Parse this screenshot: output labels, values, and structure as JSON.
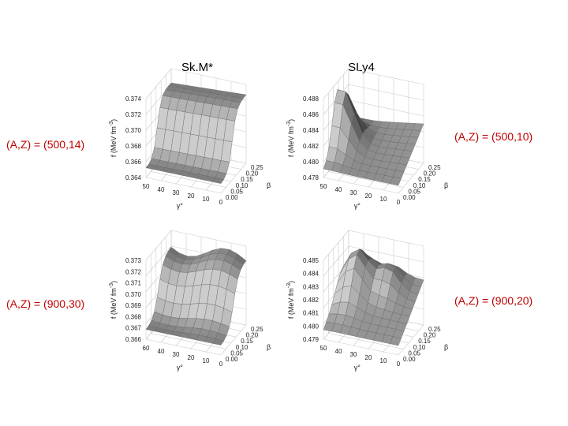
{
  "column_titles": [
    "Sk.M*",
    "SLy4"
  ],
  "row_labels": {
    "left": [
      "(A,Z) = (500,14)",
      "(A,Z) = (900,30)"
    ],
    "right": [
      "(A,Z) = (500,10)",
      "(A,Z) = (900,20)"
    ]
  },
  "panels": [
    {
      "z_label": "f (MeV fm",
      "z_label_exp": "-3",
      "z_label_end": ")",
      "z_ticks": [
        "0.374",
        "0.372",
        "0.370",
        "0.368",
        "0.366",
        "0.364"
      ],
      "gamma_ticks": [
        "50",
        "40",
        "30",
        "20",
        "10",
        "0"
      ],
      "beta_ticks": [
        "0.25",
        "0.20",
        "0.15",
        "0.10",
        "0.05",
        "0.00"
      ],
      "gamma_label": "γ°",
      "beta_label": "β"
    },
    {
      "z_label": "f (MeV fm",
      "z_label_exp": "-3",
      "z_label_end": ")",
      "z_ticks": [
        "0.488",
        "0.486",
        "0.484",
        "0.482",
        "0.480",
        "0.478"
      ],
      "gamma_ticks": [
        "50",
        "40",
        "30",
        "20",
        "10",
        "0"
      ],
      "beta_ticks": [
        "0.25",
        "0.20",
        "0.15",
        "0.10",
        "0.05",
        "0.00"
      ],
      "gamma_label": "γ°",
      "beta_label": "β"
    },
    {
      "z_label": "f (MeV fm",
      "z_label_exp": "-3",
      "z_label_end": ")",
      "z_ticks": [
        "0.373",
        "0.372",
        "0.371",
        "0.370",
        "0.369",
        "0.368",
        "0.367",
        "0.366"
      ],
      "gamma_ticks": [
        "60",
        "40",
        "30",
        "20",
        "10",
        "0"
      ],
      "beta_ticks": [
        "0.25",
        "0.20",
        "0.15",
        "0.10",
        "0.05",
        "0.00"
      ],
      "gamma_label": "γ°",
      "beta_label": "β"
    },
    {
      "z_label": "f (MeV fm",
      "z_label_exp": "-3",
      "z_label_end": ")",
      "z_ticks": [
        "0.485",
        "0.484",
        "0.483",
        "0.482",
        "0.481",
        "0.480",
        "0.479"
      ],
      "gamma_ticks": [
        "50",
        "40",
        "30",
        "20",
        "10",
        "0"
      ],
      "beta_ticks": [
        "0.25",
        "0.20",
        "0.15",
        "0.10",
        "0.05",
        "0.00"
      ],
      "gamma_label": "γ°",
      "beta_label": "β"
    }
  ]
}
